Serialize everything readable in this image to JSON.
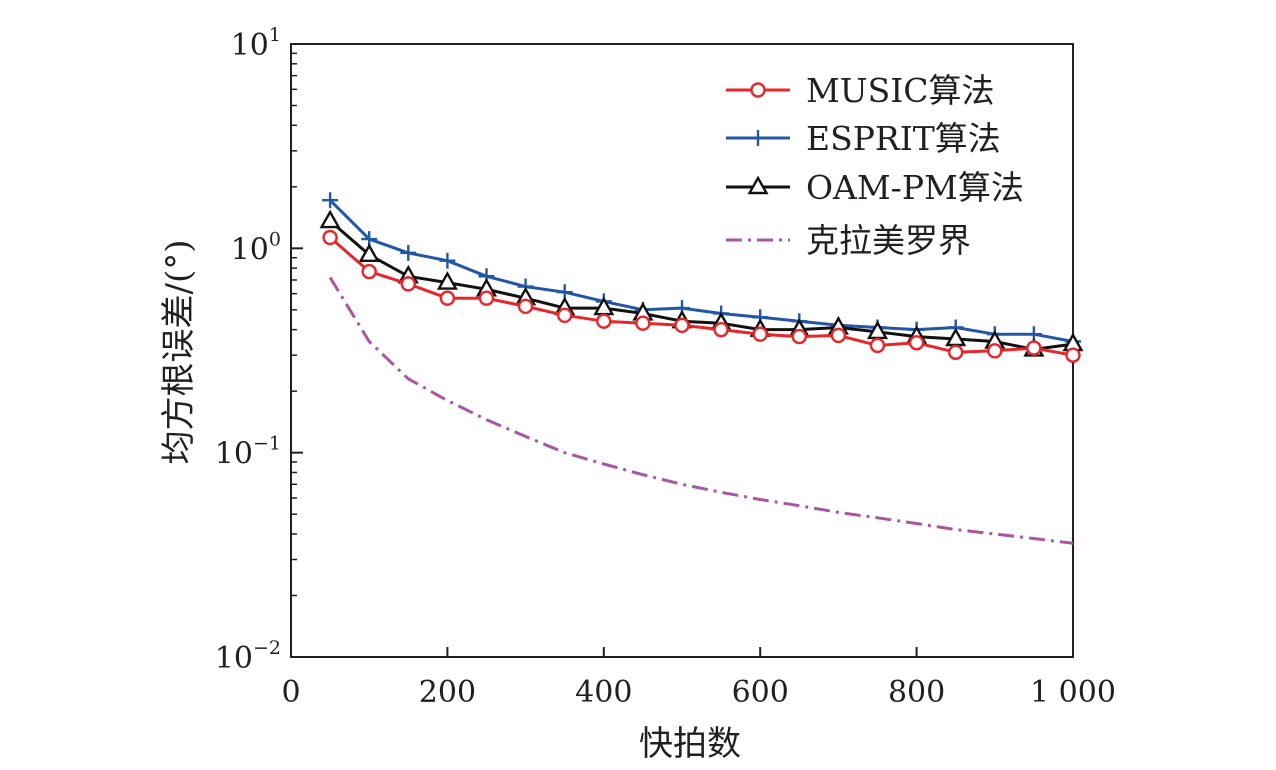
{
  "chart_data": {
    "type": "line",
    "xlabel": "快拍数",
    "ylabel": "均方根误差/(°)",
    "xlim": [
      0,
      1000
    ],
    "ylim": [
      0.01,
      10
    ],
    "yscale": "log",
    "x_ticks": [
      0,
      200,
      400,
      600,
      800,
      1000
    ],
    "x_tick_labels": [
      "0",
      "200",
      "400",
      "600",
      "800",
      "1 000"
    ],
    "y_ticks": [
      0.01,
      0.1,
      1,
      10
    ],
    "y_tick_labels": [
      {
        "base": "10",
        "exp": "−2"
      },
      {
        "base": "10",
        "exp": "−1"
      },
      {
        "base": "10",
        "exp": "0"
      },
      {
        "base": "10",
        "exp": "1"
      }
    ],
    "grid": false,
    "legend_position": "top-right",
    "x": [
      50,
      100,
      150,
      200,
      250,
      300,
      350,
      400,
      450,
      500,
      550,
      600,
      650,
      700,
      750,
      800,
      850,
      900,
      950,
      1000
    ],
    "series": [
      {
        "name": "MUSIC算法",
        "color": "#e8262a",
        "marker": "circle",
        "dash": "solid",
        "values": [
          1.13,
          0.77,
          0.67,
          0.57,
          0.57,
          0.52,
          0.47,
          0.44,
          0.43,
          0.42,
          0.4,
          0.38,
          0.37,
          0.375,
          0.335,
          0.345,
          0.31,
          0.315,
          0.325,
          0.3
        ]
      },
      {
        "name": "ESPRIT算法",
        "color": "#2256a6",
        "marker": "plus",
        "dash": "solid",
        "values": [
          1.72,
          1.11,
          0.95,
          0.87,
          0.73,
          0.65,
          0.61,
          0.55,
          0.5,
          0.51,
          0.48,
          0.46,
          0.44,
          0.42,
          0.41,
          0.4,
          0.41,
          0.38,
          0.38,
          0.35
        ]
      },
      {
        "name": "OAM-PM算法",
        "color": "#111111",
        "marker": "triangle",
        "dash": "solid",
        "values": [
          1.36,
          0.93,
          0.73,
          0.68,
          0.63,
          0.57,
          0.51,
          0.51,
          0.48,
          0.44,
          0.43,
          0.4,
          0.4,
          0.41,
          0.39,
          0.37,
          0.36,
          0.35,
          0.32,
          0.34
        ]
      },
      {
        "name": "克拉美罗界",
        "color": "#a855a6",
        "marker": "none",
        "dash": "dashdot",
        "values": [
          0.72,
          0.35,
          0.23,
          0.18,
          0.145,
          0.12,
          0.1,
          0.088,
          0.078,
          0.07,
          0.064,
          0.059,
          0.055,
          0.051,
          0.048,
          0.045,
          0.042,
          0.04,
          0.038,
          0.036
        ]
      }
    ]
  }
}
